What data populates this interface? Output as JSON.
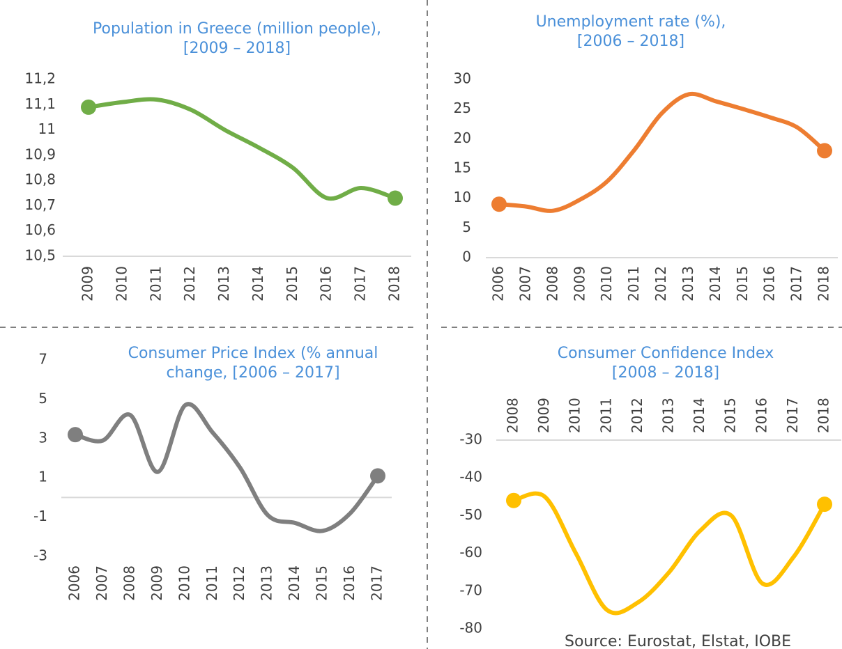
{
  "chart_data": [
    {
      "type": "line",
      "title": [
        "Population in Greece (million people),",
        "[2009 – 2018]"
      ],
      "categories": [
        "2009",
        "2010",
        "2011",
        "2012",
        "2013",
        "2014",
        "2015",
        "2016",
        "2017",
        "2018"
      ],
      "values": [
        11.09,
        11.11,
        11.12,
        11.08,
        11.0,
        10.93,
        10.85,
        10.73,
        10.77,
        10.73
      ],
      "color": "#70ad47",
      "markers": "ends",
      "x_labels": "bottom",
      "ylim": [
        10.5,
        11.2
      ],
      "yticks": [
        {
          "value": 10.5,
          "label": "10,5"
        },
        {
          "value": 10.6,
          "label": "10,6"
        },
        {
          "value": 10.7,
          "label": "10,7"
        },
        {
          "value": 10.8,
          "label": "10,8"
        },
        {
          "value": 10.9,
          "label": "10,9"
        },
        11,
        {
          "value": 11.1,
          "label": "11,1"
        },
        {
          "value": 11.2,
          "label": "11,2"
        }
      ]
    },
    {
      "type": "line",
      "title": [
        "Unemployment rate (%),",
        "[2006 – 2018]"
      ],
      "categories": [
        "2006",
        "2007",
        "2008",
        "2009",
        "2010",
        "2011",
        "2012",
        "2013",
        "2014",
        "2015",
        "2016",
        "2017",
        "2018"
      ],
      "values": [
        9.0,
        8.6,
        7.9,
        9.8,
        12.9,
        18.2,
        24.3,
        27.5,
        26.3,
        25.0,
        23.6,
        21.9,
        18.0
      ],
      "color": "#ed7d31",
      "markers": "ends",
      "x_labels": "bottom",
      "ylim": [
        0,
        30
      ],
      "yticks": [
        0,
        5,
        10,
        15,
        20,
        25,
        30
      ]
    },
    {
      "type": "line",
      "title": [
        "Consumer Price Index (% annual",
        "change, [2006 – 2017]"
      ],
      "categories": [
        "2006",
        "2007",
        "2008",
        "2009",
        "2010",
        "2011",
        "2012",
        "2013",
        "2014",
        "2015",
        "2016",
        "2017"
      ],
      "values": [
        3.2,
        2.9,
        4.2,
        1.3,
        4.7,
        3.3,
        1.5,
        -0.9,
        -1.3,
        -1.7,
        -0.8,
        1.1
      ],
      "color": "#7f7f7f",
      "markers": "ends",
      "x_labels": "bottom",
      "ylim": [
        -3,
        7
      ],
      "yticks": [
        -3,
        -1,
        1,
        3,
        5,
        7
      ]
    },
    {
      "type": "line",
      "title": [
        "Consumer Confidence Index",
        "[2008 – 2018]"
      ],
      "categories": [
        "2008",
        "2009",
        "2010",
        "2011",
        "2012",
        "2013",
        "2014",
        "2015",
        "2016",
        "2017",
        "2018"
      ],
      "values": [
        -46,
        -45,
        -60,
        -75,
        -73,
        -65,
        -54,
        -50,
        -68,
        -61,
        -47
      ],
      "color": "#ffc000",
      "markers": "ends",
      "x_labels": "top",
      "ylim": [
        -80,
        -30
      ],
      "yticks": [
        -80,
        -70,
        -60,
        -50,
        -40,
        -30
      ]
    }
  ],
  "source": "Source: Eurostat, Elstat, IOBE"
}
